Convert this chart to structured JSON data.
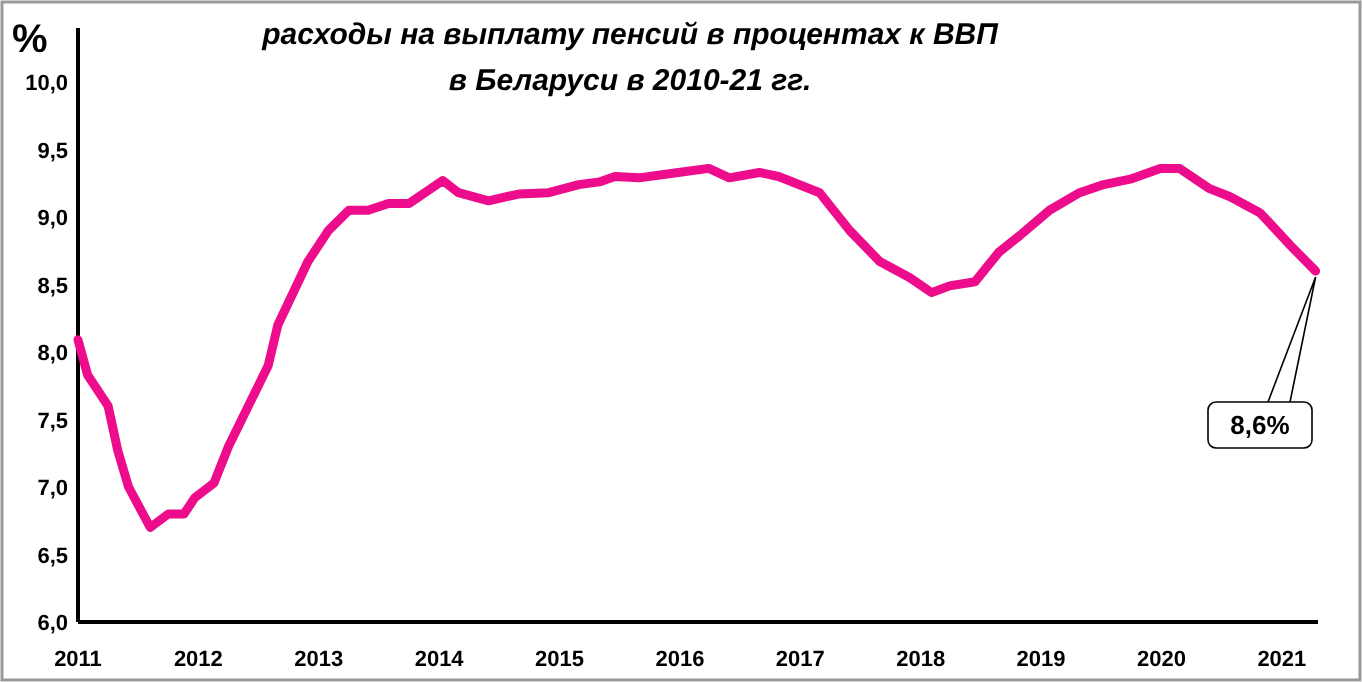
{
  "chart_data": {
    "type": "line",
    "title": "расходы на выплату пенсий в процентах к ВВП",
    "subtitle": "в Беларуси в 2010-21 гг.",
    "ylabel": "%",
    "x": [
      2011.0,
      2011.08,
      2011.25,
      2011.33,
      2011.42,
      2011.6,
      2011.75,
      2011.88,
      2011.97,
      2012.13,
      2012.25,
      2012.36,
      2012.58,
      2012.66,
      2012.91,
      2013.08,
      2013.25,
      2013.41,
      2013.58,
      2013.75,
      2014.03,
      2014.16,
      2014.41,
      2014.66,
      2014.91,
      2015.16,
      2015.33,
      2015.46,
      2015.66,
      2015.91,
      2016.24,
      2016.41,
      2016.66,
      2016.82,
      2017.16,
      2017.41,
      2017.66,
      2017.91,
      2018.09,
      2018.24,
      2018.45,
      2018.65,
      2018.82,
      2019.07,
      2019.32,
      2019.52,
      2019.74,
      2019.99,
      2020.15,
      2020.4,
      2020.57,
      2020.82,
      2021.07,
      2021.28
    ],
    "series": [
      {
        "color": "#ec0c8c",
        "values": [
          8.09,
          7.83,
          7.6,
          7.27,
          7.0,
          6.7,
          6.8,
          6.8,
          6.92,
          7.03,
          7.3,
          7.5,
          7.9,
          8.2,
          8.67,
          8.9,
          9.05,
          9.05,
          9.1,
          9.1,
          9.27,
          9.18,
          9.12,
          9.17,
          9.18,
          9.24,
          9.26,
          9.3,
          9.29,
          9.32,
          9.36,
          9.29,
          9.33,
          9.3,
          9.18,
          8.9,
          8.67,
          8.55,
          8.44,
          8.49,
          8.52,
          8.74,
          8.86,
          9.05,
          9.18,
          9.24,
          9.28,
          9.36,
          9.36,
          9.21,
          9.15,
          9.03,
          8.79,
          8.6
        ]
      }
    ],
    "xlim": [
      2011,
      2021.3
    ],
    "xticks": [
      2011,
      2012,
      2013,
      2014,
      2015,
      2016,
      2017,
      2018,
      2019,
      2020,
      2021
    ],
    "ylim": [
      6,
      10.4
    ],
    "yticks": [
      {
        "value": 6,
        "label": "6,0"
      },
      {
        "value": 6.5,
        "label": "6,5"
      },
      {
        "value": 7,
        "label": "7,0"
      },
      {
        "value": 7.5,
        "label": "7,5"
      },
      {
        "value": 8,
        "label": "8,0"
      },
      {
        "value": 8.5,
        "label": "8,5"
      },
      {
        "value": 9,
        "label": "9,0"
      },
      {
        "value": 9.5,
        "label": "9,5"
      },
      {
        "value": 10,
        "label": "10,0"
      }
    ],
    "annotations": [
      "8,6%"
    ],
    "grid": false,
    "marker": "none",
    "line_style": "solid"
  }
}
